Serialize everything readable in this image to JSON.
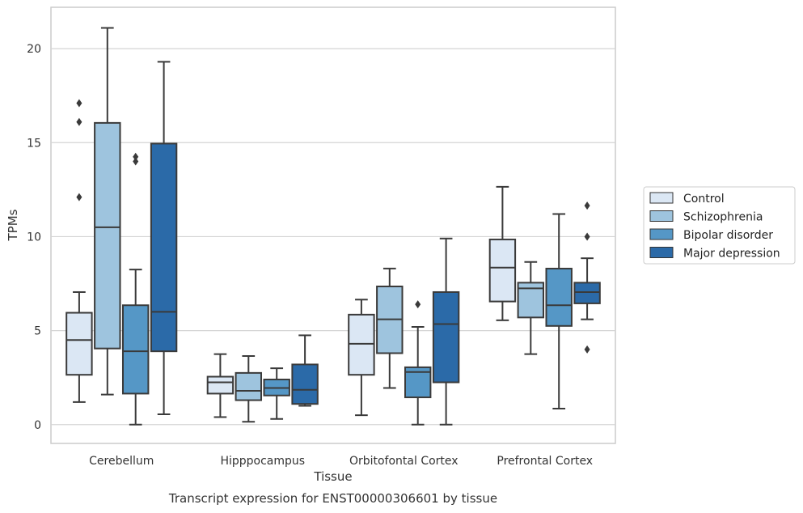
{
  "caption": "Transcript expression for ENST00000306601 by tissue",
  "chart_data": {
    "type": "box",
    "xlabel": "Tissue",
    "ylabel": "TPMs",
    "ylim": [
      -1,
      22.2
    ],
    "yticks": [
      0,
      5,
      10,
      15,
      20
    ],
    "grid": "horizontal",
    "legend_position": "right",
    "categories": [
      "Cerebellum",
      "Hipppocampus",
      "Orbitofontal Cortex",
      "Prefrontal Cortex"
    ],
    "series": [
      {
        "name": "Control",
        "color": "#dbe7f4",
        "boxes": [
          {
            "whisker_low": 1.2,
            "q1": 2.65,
            "median": 4.5,
            "q3": 5.95,
            "whisker_high": 7.05,
            "outliers": [
              12.1,
              16.1,
              17.1
            ]
          },
          {
            "whisker_low": 0.4,
            "q1": 1.65,
            "median": 2.25,
            "q3": 2.55,
            "whisker_high": 3.75,
            "outliers": []
          },
          {
            "whisker_low": 0.5,
            "q1": 2.65,
            "median": 4.3,
            "q3": 5.85,
            "whisker_high": 6.65,
            "outliers": []
          },
          {
            "whisker_low": 5.55,
            "q1": 6.55,
            "median": 8.35,
            "q3": 9.85,
            "whisker_high": 12.65,
            "outliers": []
          }
        ]
      },
      {
        "name": "Schizophrenia",
        "color": "#9ec4de",
        "boxes": [
          {
            "whisker_low": 1.6,
            "q1": 4.05,
            "median": 10.5,
            "q3": 16.05,
            "whisker_high": 21.1,
            "outliers": []
          },
          {
            "whisker_low": 0.15,
            "q1": 1.3,
            "median": 1.8,
            "q3": 2.75,
            "whisker_high": 3.65,
            "outliers": []
          },
          {
            "whisker_low": 1.95,
            "q1": 3.8,
            "median": 5.6,
            "q3": 7.35,
            "whisker_high": 8.3,
            "outliers": []
          },
          {
            "whisker_low": 3.75,
            "q1": 5.7,
            "median": 7.25,
            "q3": 7.55,
            "whisker_high": 8.65,
            "outliers": []
          }
        ]
      },
      {
        "name": "Bipolar disorder",
        "color": "#5597c6",
        "boxes": [
          {
            "whisker_low": 0.0,
            "q1": 1.65,
            "median": 3.9,
            "q3": 6.35,
            "whisker_high": 8.25,
            "outliers": [
              14.0,
              14.25
            ]
          },
          {
            "whisker_low": 0.3,
            "q1": 1.55,
            "median": 1.95,
            "q3": 2.4,
            "whisker_high": 3.0,
            "outliers": []
          },
          {
            "whisker_low": 0.0,
            "q1": 1.45,
            "median": 2.8,
            "q3": 3.05,
            "whisker_high": 5.2,
            "outliers": [
              6.4
            ]
          },
          {
            "whisker_low": 0.85,
            "q1": 5.25,
            "median": 6.35,
            "q3": 8.3,
            "whisker_high": 11.2,
            "outliers": []
          }
        ]
      },
      {
        "name": "Major depression",
        "color": "#2b6aa8",
        "boxes": [
          {
            "whisker_low": 0.55,
            "q1": 3.9,
            "median": 6.0,
            "q3": 14.95,
            "whisker_high": 19.3,
            "outliers": []
          },
          {
            "whisker_low": 1.0,
            "q1": 1.1,
            "median": 1.85,
            "q3": 3.2,
            "whisker_high": 4.75,
            "outliers": []
          },
          {
            "whisker_low": 0.0,
            "q1": 2.25,
            "median": 5.35,
            "q3": 7.05,
            "whisker_high": 9.9,
            "outliers": []
          },
          {
            "whisker_low": 5.6,
            "q1": 6.45,
            "median": 7.05,
            "q3": 7.55,
            "whisker_high": 8.85,
            "outliers": [
              4.0,
              10.0,
              11.65
            ]
          }
        ]
      }
    ]
  }
}
